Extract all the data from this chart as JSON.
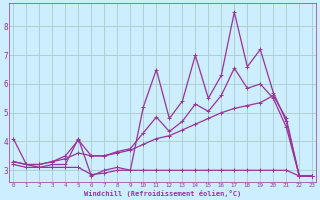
{
  "title": "",
  "xlabel": "Windchill (Refroidissement éolien,°C)",
  "bg_color": "#cceeff",
  "grid_color": "#aacccc",
  "line_color": "#993399",
  "x_ticks": [
    0,
    1,
    2,
    3,
    4,
    5,
    6,
    7,
    8,
    9,
    10,
    11,
    12,
    13,
    14,
    15,
    16,
    17,
    18,
    19,
    20,
    21,
    22,
    23
  ],
  "y_ticks": [
    3,
    4,
    5,
    6,
    7,
    8
  ],
  "ylim": [
    2.6,
    8.8
  ],
  "xlim": [
    -0.3,
    23.3
  ],
  "series": [
    {
      "x": [
        0,
        1,
        2,
        3,
        4,
        5,
        6,
        7,
        8,
        9,
        10,
        11,
        12,
        13,
        14,
        15,
        16,
        17,
        18,
        19,
        20,
        21,
        22,
        23
      ],
      "y": [
        4.1,
        3.2,
        3.1,
        3.2,
        3.2,
        4.1,
        2.8,
        3.0,
        3.1,
        3.0,
        5.2,
        6.5,
        4.8,
        5.4,
        7.0,
        5.5,
        6.3,
        8.5,
        6.6,
        7.2,
        5.7,
        4.7,
        2.8,
        2.8
      ]
    },
    {
      "x": [
        0,
        1,
        2,
        3,
        4,
        5,
        6,
        7,
        8,
        9,
        10,
        11,
        12,
        13,
        14,
        15,
        16,
        17,
        18,
        19,
        20,
        21,
        22,
        23
      ],
      "y": [
        3.2,
        3.1,
        3.1,
        3.1,
        3.1,
        3.1,
        2.85,
        2.9,
        3.0,
        3.0,
        3.0,
        3.0,
        3.0,
        3.0,
        3.0,
        3.0,
        3.0,
        3.0,
        3.0,
        3.0,
        3.0,
        3.0,
        2.8,
        2.8
      ]
    },
    {
      "x": [
        0,
        1,
        2,
        3,
        4,
        5,
        6,
        7,
        8,
        9,
        10,
        11,
        12,
        13,
        14,
        15,
        16,
        17,
        18,
        19,
        20,
        21,
        22,
        23
      ],
      "y": [
        3.3,
        3.2,
        3.2,
        3.3,
        3.4,
        3.6,
        3.5,
        3.5,
        3.6,
        3.7,
        3.9,
        4.1,
        4.2,
        4.4,
        4.6,
        4.8,
        5.0,
        5.15,
        5.25,
        5.35,
        5.6,
        4.8,
        2.8,
        2.8
      ]
    },
    {
      "x": [
        0,
        1,
        2,
        3,
        4,
        5,
        6,
        7,
        8,
        9,
        10,
        11,
        12,
        13,
        14,
        15,
        16,
        17,
        18,
        19,
        20,
        21,
        22,
        23
      ],
      "y": [
        3.3,
        3.2,
        3.2,
        3.3,
        3.5,
        4.05,
        3.5,
        3.5,
        3.65,
        3.75,
        4.3,
        4.85,
        4.35,
        4.7,
        5.3,
        5.05,
        5.6,
        6.55,
        5.85,
        6.0,
        5.5,
        4.5,
        2.8,
        2.8
      ]
    }
  ]
}
